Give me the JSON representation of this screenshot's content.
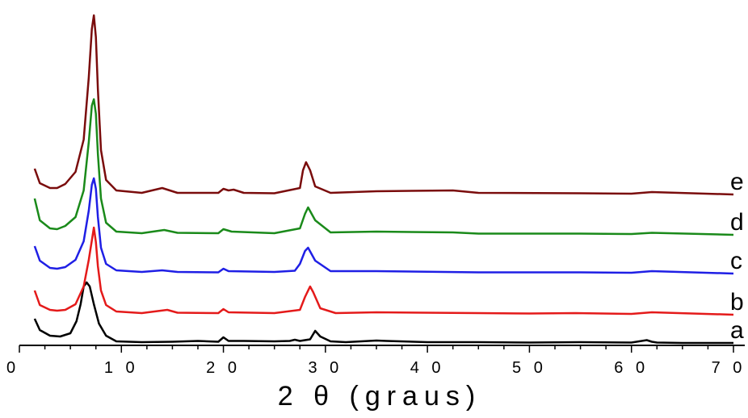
{
  "chart_data": {
    "type": "line",
    "title": "",
    "xlabel": "2 θ (graus)",
    "ylabel": "",
    "xlim": [
      0,
      70
    ],
    "xticks": [
      0,
      10,
      20,
      30,
      40,
      50,
      60,
      70
    ],
    "xtick_labels": [
      "0",
      "1 0",
      "2 0",
      "3 0",
      "4 0",
      "5 0",
      "6 0",
      "7 0"
    ],
    "grid": false,
    "legend": "none",
    "series": [
      {
        "name": "a",
        "color": "#000000",
        "offset": 0,
        "x": [
          1.5,
          2.0,
          3.0,
          4.0,
          5.0,
          5.6,
          6.0,
          6.3,
          6.6,
          6.9,
          7.3,
          7.8,
          8.5,
          9.5,
          12,
          15,
          17.5,
          19.5,
          20,
          20.5,
          22,
          25,
          26.5,
          27,
          27.5,
          28.5,
          29,
          29.5,
          30.5,
          32,
          35,
          36,
          40,
          45,
          50,
          55,
          60,
          61.5,
          62,
          62.5,
          65,
          70
        ],
        "y": [
          30,
          16,
          9,
          8,
          12,
          27,
          48,
          70,
          75,
          70,
          48,
          24,
          9,
          2,
          1,
          1.5,
          2.5,
          1.5,
          7,
          2.5,
          2.5,
          2,
          2.5,
          4,
          2.5,
          4.5,
          15,
          8,
          2,
          1,
          3,
          2.5,
          1,
          1,
          0.5,
          1,
          0.5,
          3.5,
          1.5,
          0.5,
          0,
          0
        ]
      },
      {
        "name": "b",
        "color": "#e41a1a",
        "offset": 35,
        "x": [
          1.5,
          2.0,
          3.0,
          3.7,
          4.5,
          5.5,
          6.3,
          6.8,
          7.1,
          7.3,
          7.5,
          7.7,
          8.0,
          8.5,
          9.5,
          12,
          14.5,
          15.5,
          19.5,
          20,
          20.5,
          25,
          27.5,
          28,
          28.5,
          28.8,
          29.5,
          31,
          35,
          45,
          50,
          54.5,
          60,
          62,
          70
        ],
        "y": [
          30,
          12,
          6,
          5,
          6,
          13,
          35,
          68,
          92,
          108,
          90,
          60,
          30,
          12,
          4,
          2,
          6,
          2.5,
          2,
          7,
          3,
          2,
          6,
          22,
          35,
          28,
          8,
          2,
          3,
          2,
          1.5,
          2,
          1,
          3,
          0
        ]
      },
      {
        "name": "c",
        "color": "#1f1fe5",
        "offset": 86,
        "x": [
          1.5,
          2.0,
          3.0,
          3.7,
          4.5,
          5.5,
          6.3,
          6.8,
          7.1,
          7.3,
          7.5,
          7.7,
          8.0,
          8.5,
          9.5,
          12,
          14,
          15.5,
          19.5,
          20,
          20.5,
          25,
          27,
          27.5,
          28,
          28.3,
          29,
          30.5,
          35,
          45,
          50,
          55,
          60,
          62,
          70
        ],
        "y": [
          34,
          16,
          7,
          6,
          8,
          17,
          40,
          78,
          110,
          118,
          105,
          70,
          32,
          12,
          4,
          2,
          4,
          2,
          1.5,
          6,
          3,
          2,
          3.5,
          12,
          28,
          32,
          16,
          3,
          3,
          1.5,
          1.5,
          1.5,
          1,
          3,
          0
        ]
      },
      {
        "name": "d",
        "color": "#1a8a1a",
        "offset": 134,
        "x": [
          1.5,
          2.0,
          3.0,
          3.7,
          4.5,
          5.5,
          6.3,
          6.8,
          7.1,
          7.3,
          7.5,
          7.7,
          8.0,
          8.5,
          9.5,
          12,
          14.2,
          15.5,
          19.5,
          20,
          20.8,
          25,
          27.5,
          28,
          28.3,
          29,
          30.5,
          35,
          42.5,
          45,
          55,
          60,
          62,
          70
        ],
        "y": [
          45,
          18,
          8,
          7,
          11,
          22,
          55,
          115,
          160,
          168,
          150,
          100,
          45,
          15,
          4,
          2,
          6,
          2.5,
          2,
          7,
          4,
          2,
          8,
          26,
          34,
          18,
          3,
          4,
          3,
          1.5,
          1.5,
          1,
          2.5,
          0
        ]
      },
      {
        "name": "e",
        "color": "#7a0c0c",
        "offset": 184,
        "x": [
          1.5,
          2.0,
          3.0,
          3.7,
          4.5,
          5.5,
          6.3,
          6.8,
          7.1,
          7.3,
          7.5,
          7.7,
          8.0,
          8.5,
          9.5,
          12,
          14,
          15.5,
          19.5,
          20,
          20.5,
          21,
          22,
          25,
          27.5,
          27.8,
          28.1,
          28.5,
          29,
          30.5,
          35,
          42.5,
          45,
          55,
          60,
          62,
          70
        ],
        "y": [
          32,
          14,
          8,
          8,
          13,
          28,
          68,
          145,
          205,
          222,
          195,
          130,
          55,
          18,
          5,
          2,
          8,
          2,
          2,
          7,
          5,
          6,
          2,
          1.5,
          8,
          30,
          40,
          30,
          10,
          2,
          4,
          5,
          2,
          1.5,
          1,
          3,
          0
        ]
      }
    ]
  }
}
